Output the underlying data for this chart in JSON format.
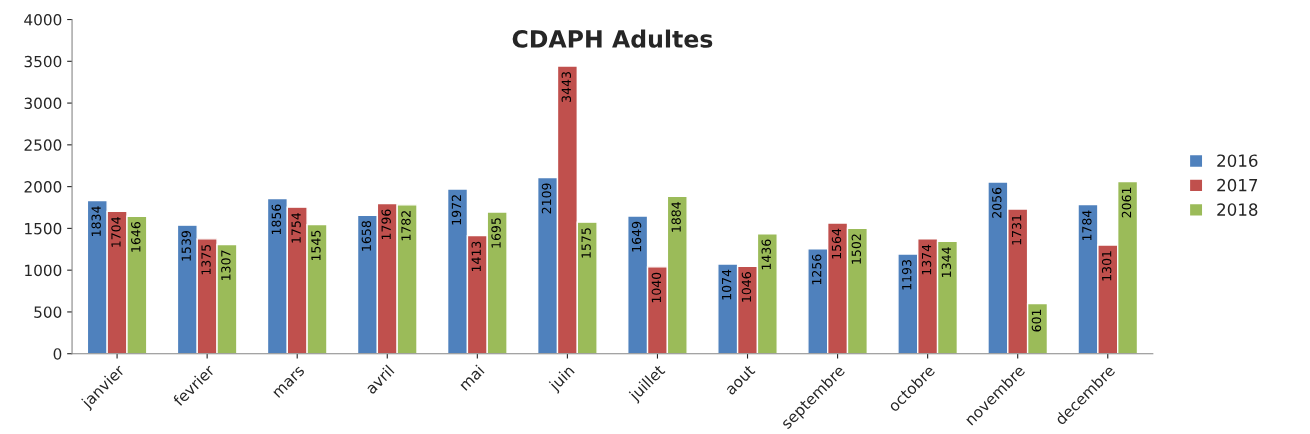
{
  "chart_data": {
    "type": "bar",
    "title": "CDAPH Adultes",
    "categories": [
      "janvier",
      "fevrier",
      "mars",
      "avril",
      "mai",
      "juin",
      "juillet",
      "aout",
      "septembre",
      "octobre",
      "novembre",
      "decembre"
    ],
    "series": [
      {
        "name": "2016",
        "color": "#4f81bd",
        "values": [
          1834,
          1539,
          1856,
          1658,
          1972,
          2109,
          1649,
          1074,
          1256,
          1193,
          2056,
          1784
        ]
      },
      {
        "name": "2017",
        "color": "#c0504d",
        "values": [
          1704,
          1375,
          1754,
          1796,
          1413,
          3443,
          1040,
          1046,
          1564,
          1374,
          1731,
          1301
        ]
      },
      {
        "name": "2018",
        "color": "#9bbb59",
        "values": [
          1646,
          1307,
          1545,
          1782,
          1695,
          1575,
          1884,
          1436,
          1502,
          1344,
          601,
          2061
        ]
      }
    ],
    "ylim": [
      0,
      4000
    ],
    "yticks": [
      0,
      500,
      1000,
      1500,
      2000,
      2500,
      3000,
      3500,
      4000
    ],
    "data_labels": true,
    "grid": false,
    "legend": "right"
  }
}
